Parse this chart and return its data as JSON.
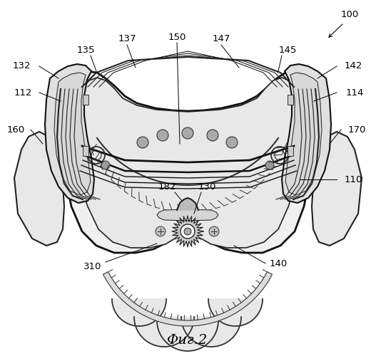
{
  "caption": "Фиг.2",
  "bg": "#ffffff",
  "fw": 5.27,
  "fh": 5.0,
  "dpi": 100
}
